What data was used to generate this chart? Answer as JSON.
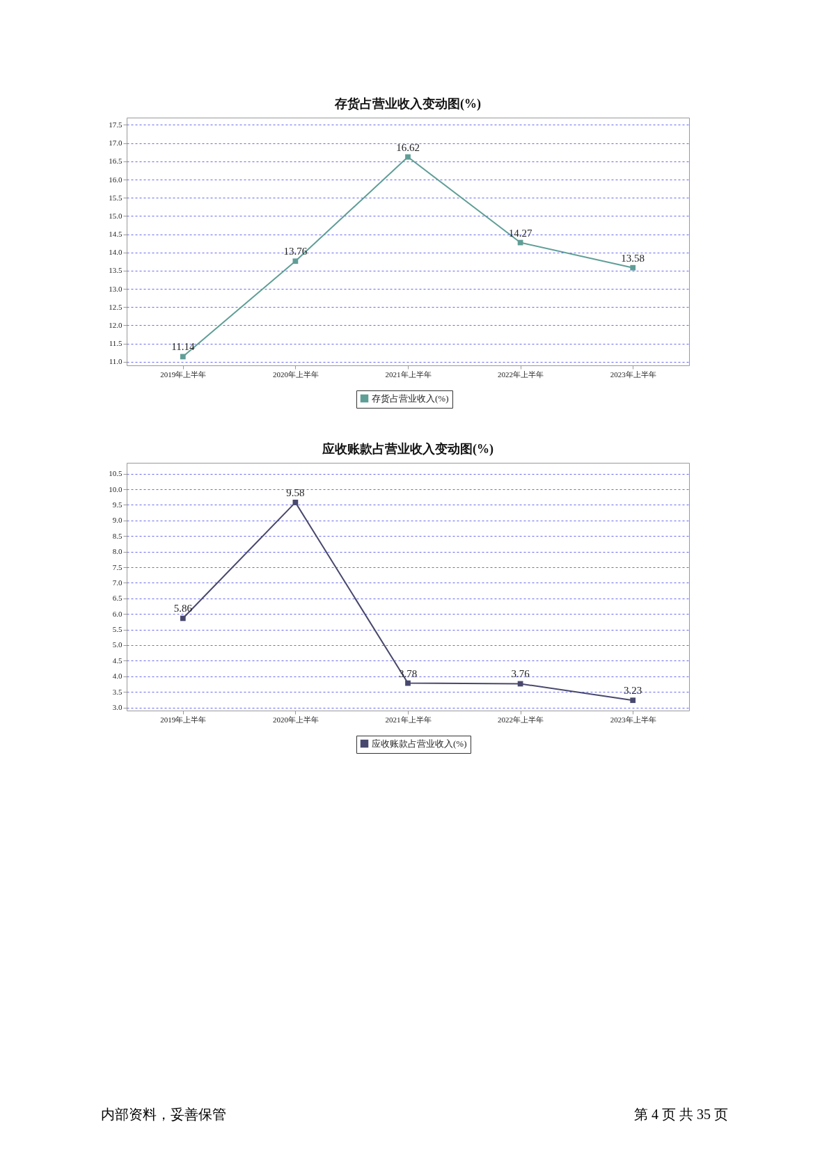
{
  "chart_data": [
    {
      "type": "line",
      "title": "存货占营业收入变动图(%)",
      "categories": [
        "2019年上半年",
        "2020年上半年",
        "2021年上半年",
        "2022年上半年",
        "2023年上半年"
      ],
      "series": [
        {
          "name": "存货占营业收入(%)",
          "color": "#5f9e96",
          "values": [
            11.14,
            13.76,
            16.62,
            14.27,
            13.58
          ]
        }
      ],
      "ylim": [
        10.9,
        17.7
      ],
      "yticks": [
        {
          "value": 11,
          "label": "11.0"
        },
        11.5,
        {
          "value": 12,
          "label": "12.0"
        },
        12.5,
        {
          "value": 13,
          "label": "13.0"
        },
        13.5,
        {
          "value": 14,
          "label": "14.0"
        },
        14.5,
        {
          "value": 15,
          "label": "15.0"
        },
        15.5,
        {
          "value": 16,
          "label": "16.0"
        },
        16.5,
        {
          "value": 17,
          "label": "17.0"
        },
        17.5
      ],
      "grid": "y",
      "legend": "bottom",
      "marker": "square",
      "data_labels": true
    },
    {
      "type": "line",
      "title": "应收账款占营业收入变动图(%)",
      "categories": [
        "2019年上半年",
        "2020年上半年",
        "2021年上半年",
        "2022年上半年",
        "2023年上半年"
      ],
      "series": [
        {
          "name": "应收账款占营业收入(%)",
          "color": "#48486e",
          "values": [
            5.86,
            9.58,
            3.78,
            3.76,
            3.23
          ]
        }
      ],
      "ylim": [
        2.9,
        10.85
      ],
      "yticks": [
        {
          "value": 3,
          "label": "3.0"
        },
        3.5,
        {
          "value": 4,
          "label": "4.0"
        },
        4.5,
        {
          "value": 5,
          "label": "5.0"
        },
        5.5,
        {
          "value": 6,
          "label": "6.0"
        },
        6.5,
        {
          "value": 7,
          "label": "7.0"
        },
        7.5,
        {
          "value": 8,
          "label": "8.0"
        },
        8.5,
        {
          "value": 9,
          "label": "9.0"
        },
        9.5,
        {
          "value": 10,
          "label": "10.0"
        },
        10.5
      ],
      "grid": "y",
      "legend": "bottom",
      "marker": "square",
      "data_labels": true,
      "annotations": [
        "内部资料，妥善保管",
        "第 4 页 共 35 页"
      ]
    }
  ]
}
